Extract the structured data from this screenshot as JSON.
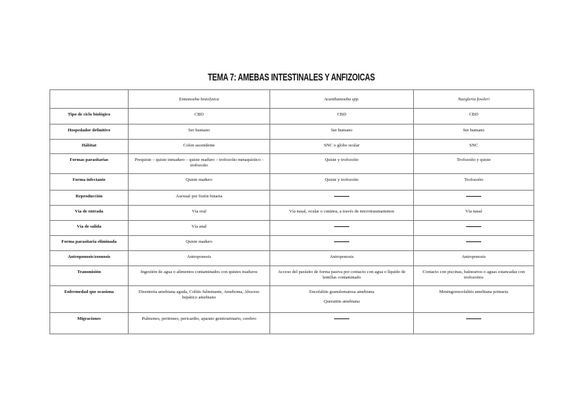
{
  "title": "TEMA 7: AMEBAS INTESTINALES Y ANFIZOICAS",
  "columns": [
    "",
    "Entamoeba histolytica",
    "Acanthamoeba spp.",
    "Naegleria fowleri"
  ],
  "rows": [
    {
      "label": "Tipo de ciclo biológico",
      "cells": [
        "CBD",
        "CBD",
        "CBD"
      ]
    },
    {
      "label": "Hospedador definitivo",
      "cells": [
        "Ser humano",
        "Ser humano",
        "Ser humano"
      ]
    },
    {
      "label": "Hábitat",
      "cells": [
        "Colon ascendente",
        "SNC o globo ocular",
        "SNC"
      ]
    },
    {
      "label": "Formas parasitarias",
      "cells": [
        "Prequiste – quiste inmaduro – quiste maduro – trofozoíto metaquístico - trofozoíto",
        "Quiste y trofozoíto",
        "Trofozoíto y quiste"
      ]
    },
    {
      "label": "Forma infectante",
      "cells": [
        "Quiste maduro",
        "Quiste y trofozoíto",
        "Trofozoíto"
      ]
    },
    {
      "label": "Reproducción",
      "cells": [
        "Asexual por fisión binaria",
        "——",
        "——"
      ]
    },
    {
      "label": "Vía de entrada",
      "cells": [
        "Vía oral",
        "Vía nasal, ocular o cutánea, a través de microtraumatismos",
        "Vía nasal"
      ]
    },
    {
      "label": "Vía de salida",
      "cells": [
        "Vía anal",
        "——",
        "——"
      ]
    },
    {
      "label": "Forma parasitaria eliminada",
      "cells": [
        "Quiste maduro",
        "——",
        "——"
      ]
    },
    {
      "label": "Antroponosis/zoonosis",
      "cells": [
        "Antroponosis",
        "Antroponosis",
        "Antroponosis"
      ]
    },
    {
      "label": "Transmisión",
      "cells": [
        "Ingestión de agua o alimentos contaminados con quistes maduros",
        "Acceso del parásito de forma pasiva por contacto con agua o líquido de lentillas contaminado",
        "Contacto con piscinas, balnearios o aguas estancadas con trofozoítos"
      ]
    },
    {
      "label": "Enfermedad que ocasiona",
      "cells": [
        "Disentería amebiana aguda, Colitis fulminante, Ameboma, Absceso hepático amebiano",
        [
          "Encefalitis granulomatosa amebiana",
          "Queratitis amebiana"
        ],
        "Meningoencefalitis amebiana primaria"
      ]
    },
    {
      "label": "Migraciones",
      "cells": [
        "Pulmones, peritoneo, pericardio, aparato genitourinario, cerebro",
        "——",
        "——"
      ]
    }
  ]
}
